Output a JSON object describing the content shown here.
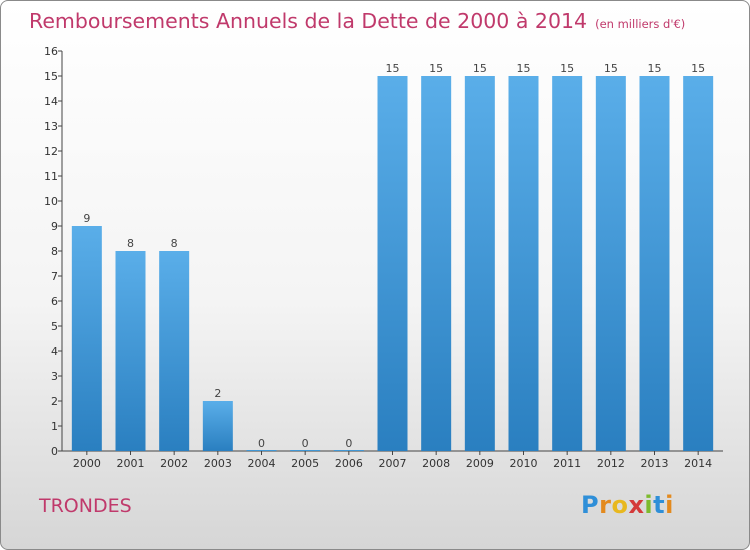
{
  "chart_data": {
    "type": "bar",
    "title": "Remboursements Annuels de la Dette de 2000 à 2014",
    "subtitle": "(en milliers d'€)",
    "categories": [
      "2000",
      "2001",
      "2002",
      "2003",
      "2004",
      "2005",
      "2006",
      "2007",
      "2008",
      "2009",
      "2010",
      "2011",
      "2012",
      "2013",
      "2014"
    ],
    "values": [
      9,
      8,
      8,
      2,
      0,
      0,
      0,
      15,
      15,
      15,
      15,
      15,
      15,
      15,
      15
    ],
    "ylim": [
      0,
      16
    ],
    "yticks": [
      "0",
      "1",
      "2",
      "3",
      "4",
      "5",
      "6",
      "7",
      "8",
      "9",
      "10",
      "11",
      "12",
      "13",
      "14",
      "15",
      "16"
    ],
    "grid": false,
    "xlabel": "",
    "ylabel": ""
  },
  "footer": {
    "city": "TRONDES",
    "logo": [
      "P",
      "r",
      "o",
      "x",
      "i",
      "t",
      "i"
    ]
  },
  "colors": {
    "bar_top": "#5aaee9",
    "bar_bottom": "#2a7fc0",
    "title": "#c0396b"
  }
}
